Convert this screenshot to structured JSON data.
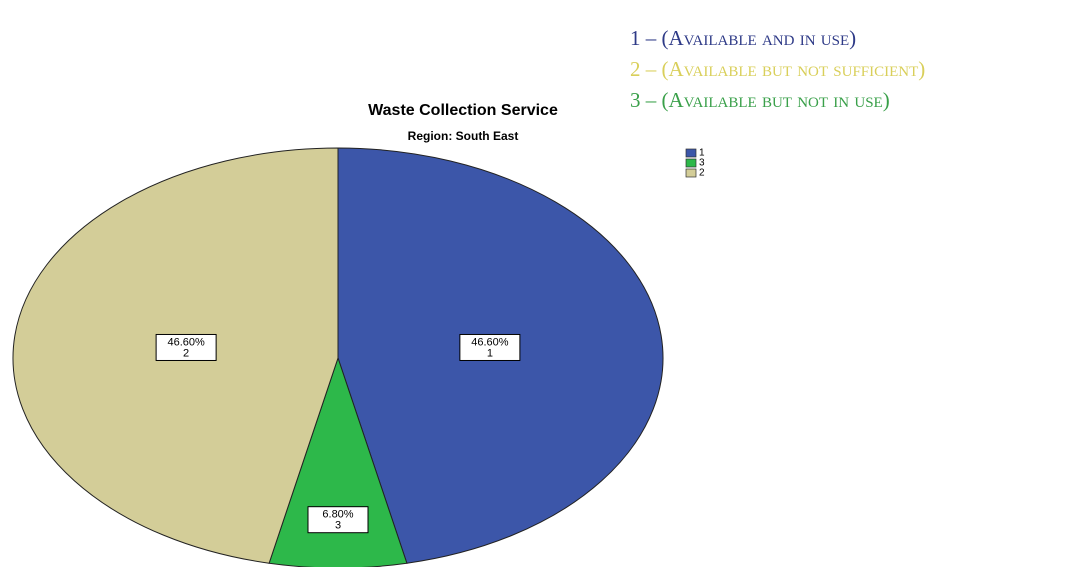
{
  "chart_data": {
    "type": "pie",
    "title": "Waste Collection Service",
    "subtitle": "Region: South East",
    "categories": [
      "1",
      "3",
      "2"
    ],
    "values": [
      46.6,
      6.8,
      46.6
    ],
    "value_labels": [
      "46.60%",
      "6.80%",
      "46.60%"
    ],
    "colors": [
      "#3c56a9",
      "#2db84a",
      "#d3cd98"
    ],
    "legend": "top-right",
    "annotations": [
      {
        "text": "1 – (Available and in use)",
        "color": "#2e3a87"
      },
      {
        "text": "2 – (Available but not sufficient)",
        "color": "#d9cf5a"
      },
      {
        "text": "3 – (Available but not in use)",
        "color": "#3aa04a"
      }
    ]
  }
}
